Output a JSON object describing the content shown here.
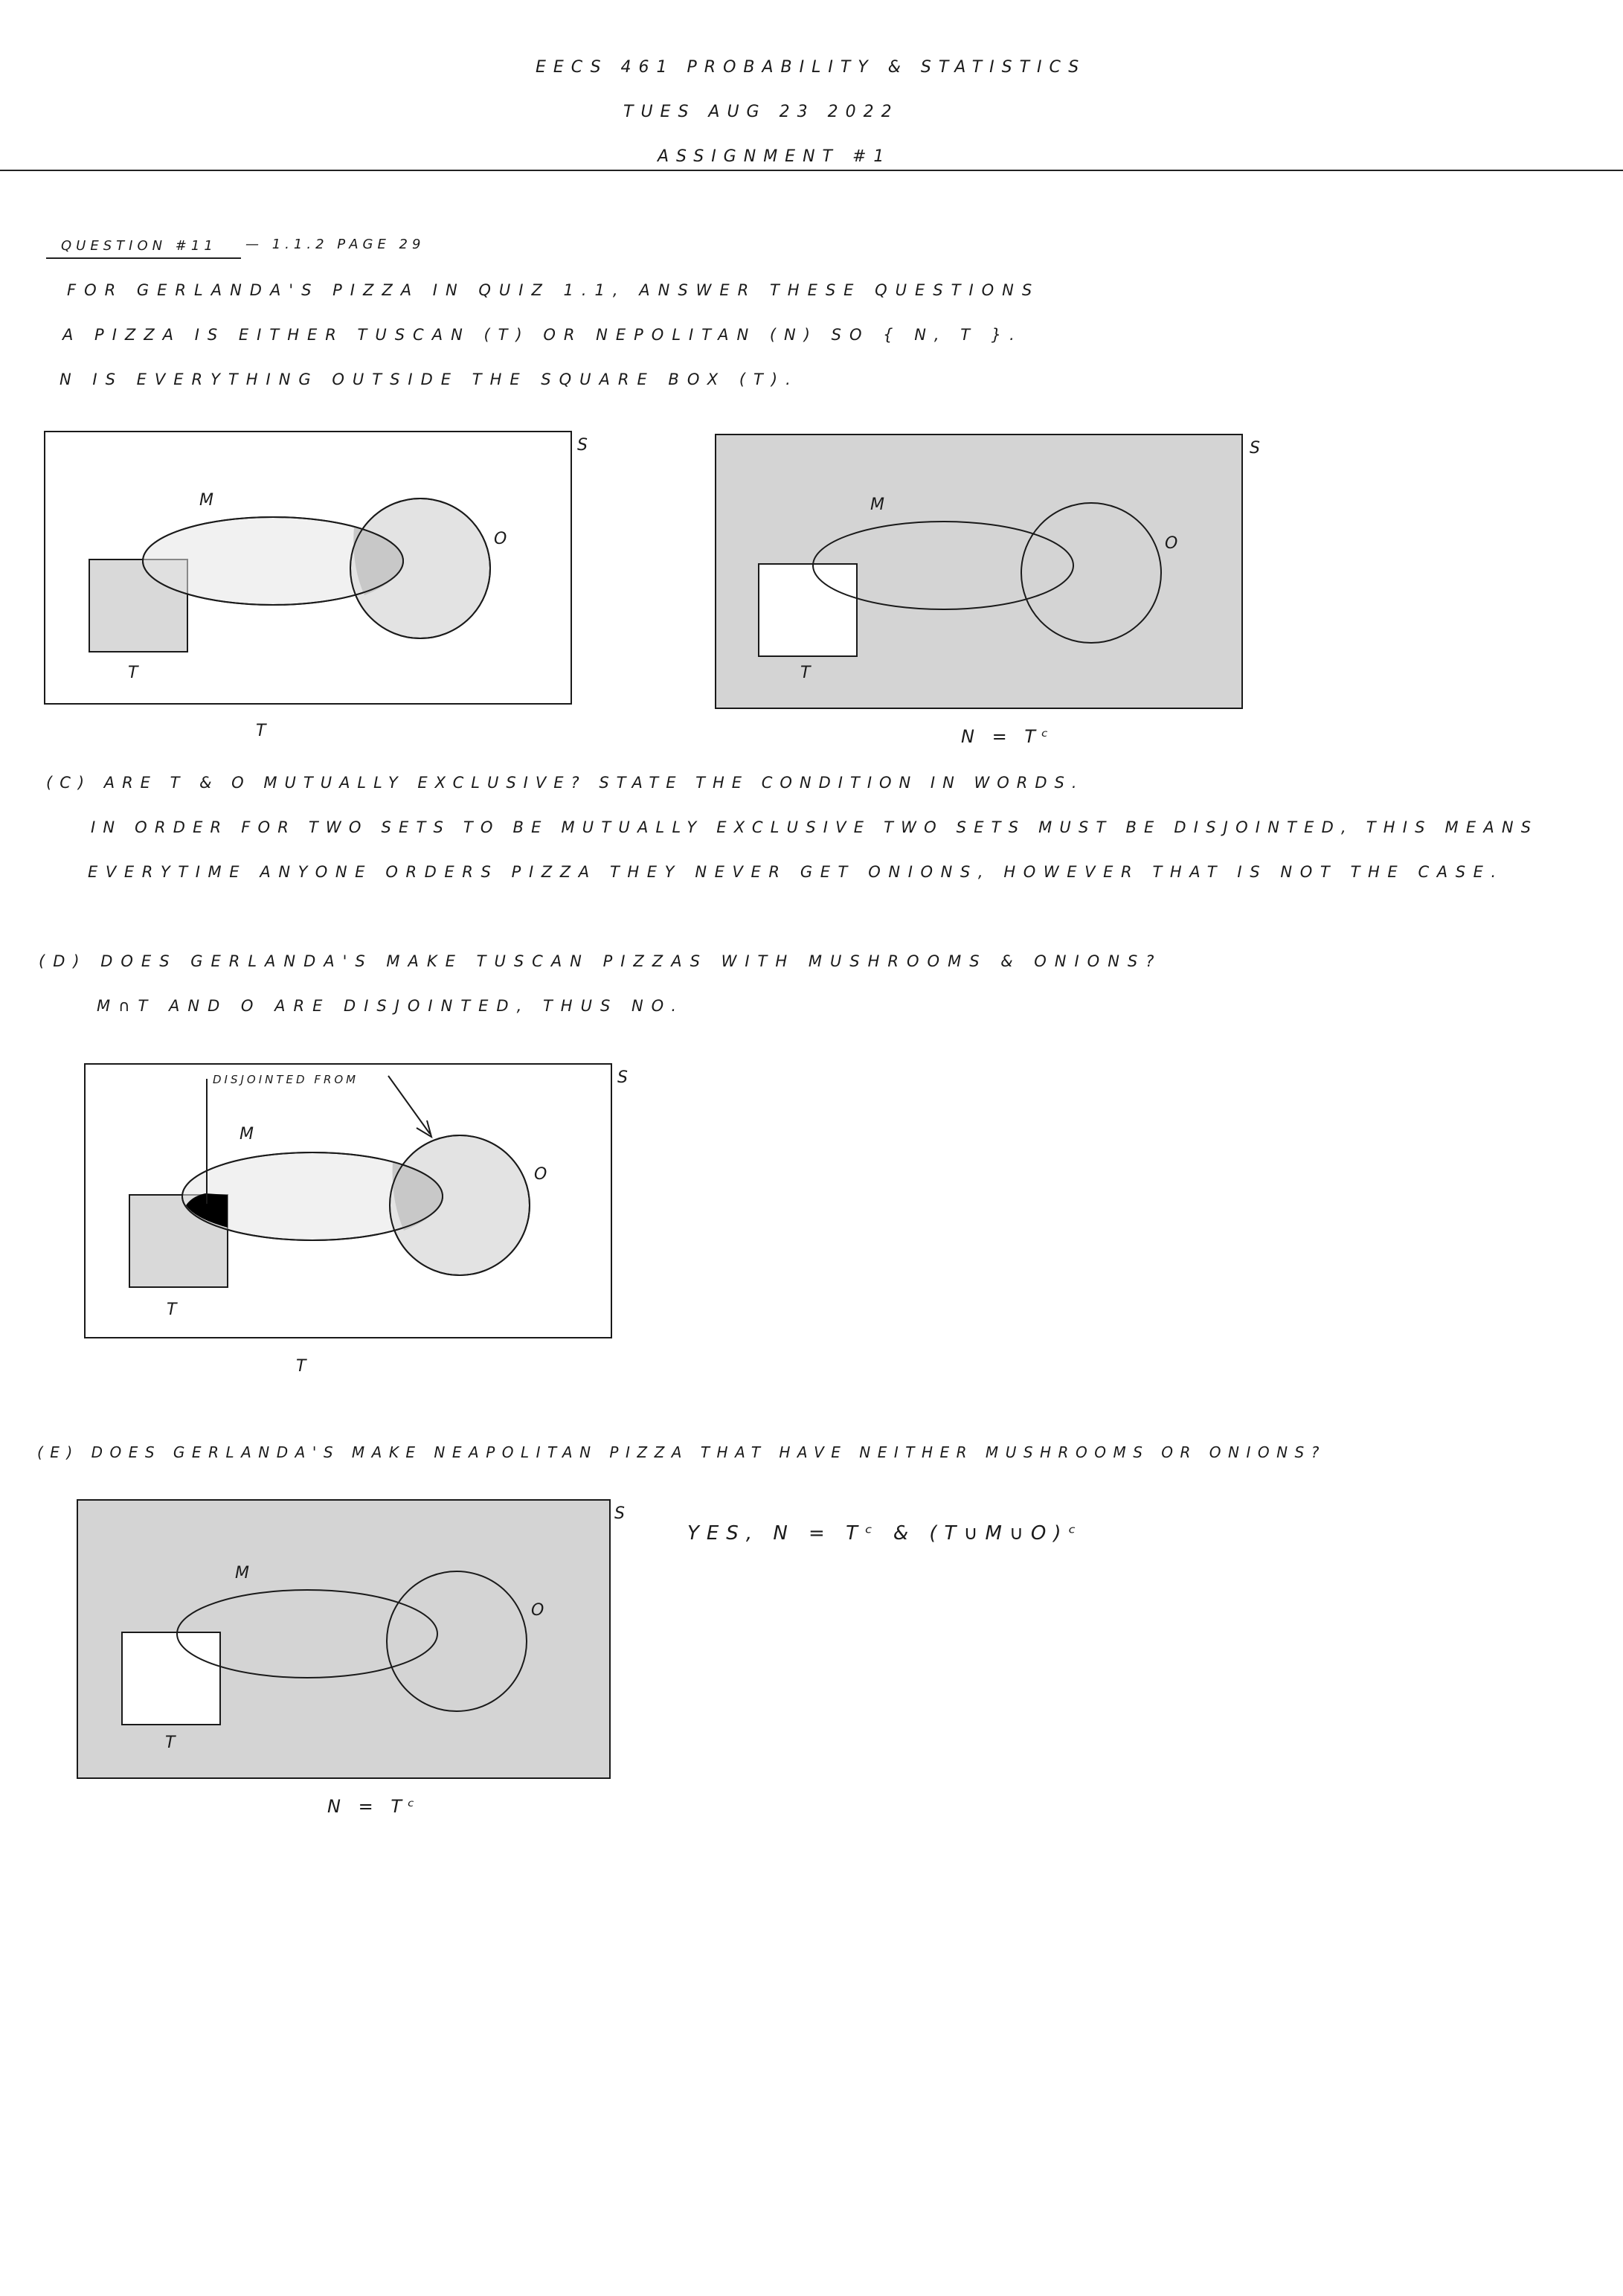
{
  "header": {
    "course": "EECS 461 PROBABILITY & STATISTICS",
    "date": "TUES AUG 23 2022",
    "assignment": "ASSIGNMENT #1"
  },
  "question": {
    "title": "QUESTION #11",
    "ref": "— 1.1.2 PAGE 29",
    "line1": "FOR GERLANDA'S PIZZA IN QUIZ 1.1, ANSWER THESE QUESTIONS",
    "line2": "A PIZZA IS EITHER TUSCAN (T) OR NEPOLITAN (N) SO { N, T }.",
    "line3": "N IS EVERYTHING OUTSIDE THE SQUARE BOX (T)."
  },
  "diagram_labels": {
    "S": "S",
    "M": "M",
    "O": "O",
    "T": "T",
    "caption_T": "T",
    "caption_N": "N = Tᶜ",
    "disjointed_from": "DISJOINTED FROM"
  },
  "part_c": {
    "q": "(C) ARE T & O MUTUALLY EXCLUSIVE? STATE THE CONDITION IN WORDS.",
    "a1": "IN ORDER FOR TWO SETS TO BE MUTUALLY EXCLUSIVE TWO SETS MUST BE DISJOINTED, THIS MEANS",
    "a2": "EVERYTIME ANYONE ORDERS PIZZA THEY NEVER GET ONIONS, HOWEVER THAT IS NOT THE CASE."
  },
  "part_d": {
    "q": "(D) DOES GERLANDA'S MAKE TUSCAN PIZZAS WITH MUSHROOMS & ONIONS?",
    "a": "M∩T AND O ARE DISJOINTED, THUS NO."
  },
  "part_e": {
    "q": "(E) DOES GERLANDA'S MAKE NEAPOLITAN PIZZA THAT HAVE NEITHER MUSHROOMS OR ONIONS?",
    "a": "YES, N = Tᶜ & (T∪M∪O)ᶜ"
  },
  "colors": {
    "ink": "#1a1a1a",
    "shade": "#d4d4d4",
    "light_fill": "#e6e6e6",
    "overlap_fill": "#c8c8c8"
  }
}
